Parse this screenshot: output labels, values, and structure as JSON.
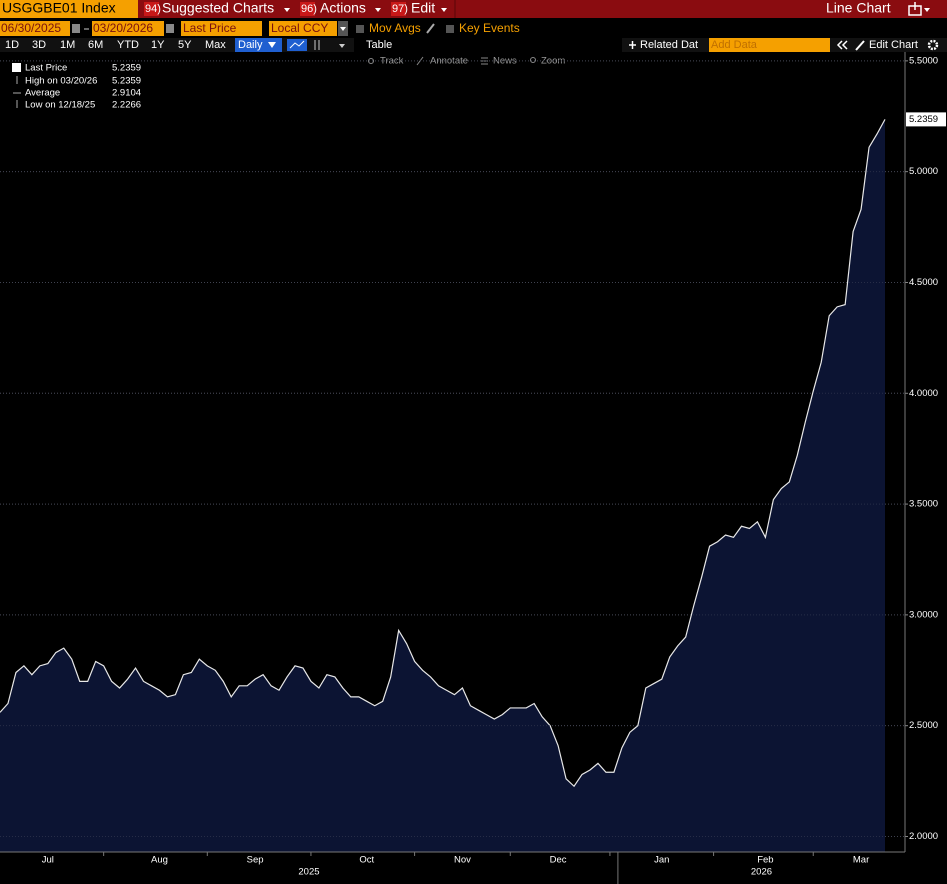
{
  "header": {
    "ticker": "USGGBE01 Index",
    "menus": [
      {
        "code": "94)",
        "label": "Suggested Charts"
      },
      {
        "code": "96)",
        "label": "Actions"
      },
      {
        "code": "97)",
        "label": "Edit"
      }
    ],
    "view": "Line Chart"
  },
  "controls": {
    "start_date": "06/30/2025",
    "end_date": "03/20/2026",
    "field": "Last Price",
    "currency": "Local CCY",
    "toggles": [
      "Mov Avgs",
      "Key Events"
    ],
    "ranges": [
      "1D",
      "3D",
      "1M",
      "6M",
      "YTD",
      "1Y",
      "5Y",
      "Max"
    ],
    "frequency": "Daily",
    "table": "Table",
    "related": "Related Dat",
    "add_data": "Add Data",
    "edit_chart": "Edit Chart",
    "tools": [
      "Track",
      "Annotate",
      "News",
      "Zoom"
    ]
  },
  "chart_data": {
    "type": "line",
    "categories": [
      null,
      null,
      null,
      null,
      null,
      null,
      "Jul",
      null,
      null,
      null,
      null,
      null,
      null,
      null,
      null,
      null,
      null,
      null,
      null,
      null,
      "Aug",
      null,
      null,
      null,
      null,
      null,
      null,
      null,
      null,
      null,
      null,
      null,
      "Sep",
      null,
      null,
      null,
      null,
      null,
      null,
      null,
      null,
      null,
      null,
      null,
      null,
      null,
      "Oct",
      null,
      null,
      null,
      null,
      null,
      null,
      null,
      null,
      null,
      null,
      null,
      "Nov",
      null,
      null,
      null,
      null,
      null,
      null,
      null,
      null,
      null,
      null,
      null,
      "Dec",
      null,
      null,
      null,
      null,
      null,
      null,
      null,
      null,
      null,
      null,
      null,
      null,
      "Jan",
      null,
      null,
      null,
      null,
      null,
      null,
      null,
      null,
      null,
      null,
      null,
      null,
      "Feb",
      null,
      null,
      null,
      null,
      null,
      null,
      null,
      null,
      null,
      null,
      null,
      "Mar",
      null,
      null,
      null
    ],
    "x_groups": [
      {
        "label": "2025",
        "count": 78
      },
      {
        "label": "2026",
        "count": 34
      }
    ],
    "series": [
      {
        "name": "Last Price",
        "color": "#e8e8e8",
        "fill": "#0c1433",
        "values": [
          2.56,
          2.6,
          2.74,
          2.77,
          2.73,
          2.77,
          2.78,
          2.83,
          2.85,
          2.8,
          2.7,
          2.7,
          2.79,
          2.77,
          2.7,
          2.67,
          2.71,
          2.76,
          2.7,
          2.68,
          2.66,
          2.63,
          2.64,
          2.73,
          2.74,
          2.8,
          2.77,
          2.75,
          2.7,
          2.63,
          2.68,
          2.68,
          2.71,
          2.73,
          2.68,
          2.66,
          2.72,
          2.77,
          2.76,
          2.7,
          2.67,
          2.73,
          2.72,
          2.67,
          2.63,
          2.63,
          2.61,
          2.59,
          2.61,
          2.72,
          2.93,
          2.87,
          2.79,
          2.75,
          2.72,
          2.68,
          2.66,
          2.64,
          2.67,
          2.59,
          2.57,
          2.55,
          2.53,
          2.55,
          2.58,
          2.58,
          2.58,
          2.6,
          2.54,
          2.5,
          2.41,
          2.26,
          2.2266,
          2.28,
          2.3,
          2.33,
          2.29,
          2.29,
          2.4,
          2.47,
          2.5,
          2.67,
          2.69,
          2.71,
          2.81,
          2.86,
          2.9,
          3.04,
          3.17,
          3.31,
          3.33,
          3.36,
          3.35,
          3.4,
          3.39,
          3.42,
          3.35,
          3.52,
          3.57,
          3.6,
          3.72,
          3.87,
          4.01,
          4.14,
          4.35,
          4.39,
          4.4,
          4.73,
          4.83,
          5.11,
          5.17,
          5.2359
        ]
      }
    ],
    "ylim": [
      1.93,
      5.54
    ],
    "yticks": [
      {
        "value": 2,
        "label": "2.0000"
      },
      {
        "value": 2.5,
        "label": "2.5000"
      },
      {
        "value": 3,
        "label": "3.0000"
      },
      {
        "value": 3.5,
        "label": "3.5000"
      },
      {
        "value": 4,
        "label": "4.0000"
      },
      {
        "value": 4.5,
        "label": "4.5000"
      },
      {
        "value": 5,
        "label": "5.0000"
      },
      {
        "value": 5.5,
        "label": "5.5000"
      }
    ],
    "grid": true,
    "stats": [
      {
        "label": "High on 03/20/26",
        "value": 5.2359
      },
      {
        "label": "Average",
        "value": 2.9104
      },
      {
        "label": "Low on 12/18/25",
        "value": 2.2266
      }
    ]
  }
}
